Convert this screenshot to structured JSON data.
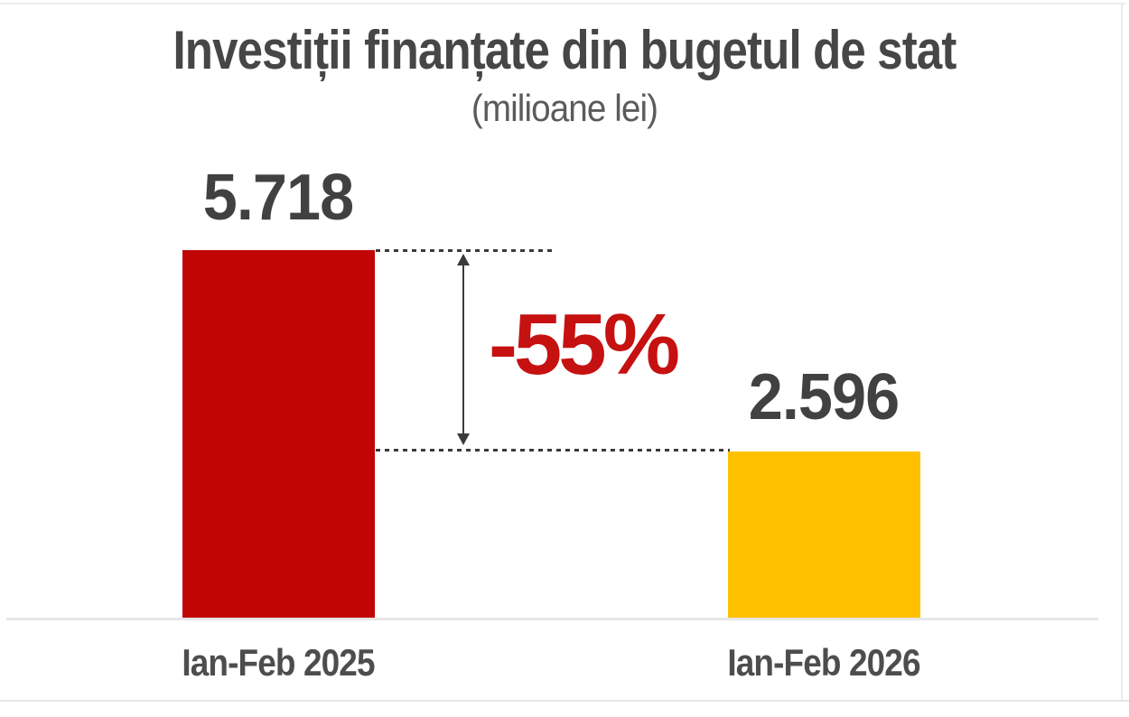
{
  "chart": {
    "title": "Investiții finanțate din bugetul de stat",
    "subtitle": "(milioane lei)",
    "annotation": "-55%",
    "bars": [
      {
        "category": "Ian-Feb 2025",
        "value": 5718,
        "value_label": "5.718",
        "color": "#c10505"
      },
      {
        "category": "Ian-Feb 2026",
        "value": 2596,
        "value_label": "2.596",
        "color": "#ffc000"
      }
    ]
  },
  "chart_data": {
    "type": "bar",
    "title": "Investiții finanțate din bugetul de stat",
    "subtitle": "(milioane lei)",
    "categories": [
      "Ian-Feb 2025",
      "Ian-Feb 2026"
    ],
    "values": [
      5718,
      2596
    ],
    "value_labels": [
      "5.718",
      "2.596"
    ],
    "bar_colors": [
      "#c10505",
      "#ffc000"
    ],
    "annotation": "-55%",
    "annotation_color": "#c61111",
    "xlabel": "",
    "ylabel": "",
    "ylim": [
      0,
      5718
    ],
    "grid": false,
    "legend": false,
    "baseline_color": "#e7e7e7",
    "text_color": "#464646"
  }
}
